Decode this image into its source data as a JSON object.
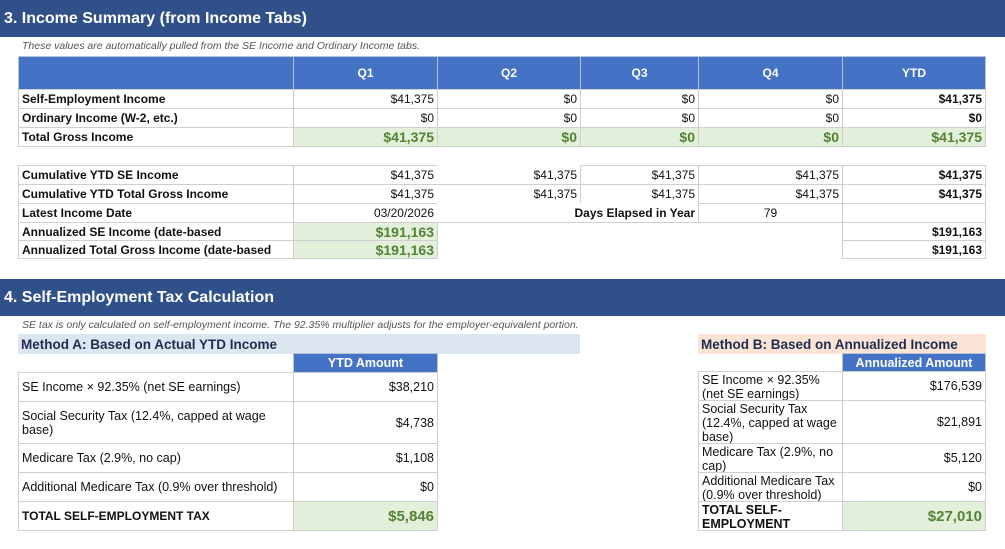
{
  "section3": {
    "title": "3. Income Summary (from Income Tabs)",
    "note": "These values are automatically pulled from the SE Income and Ordinary Income tabs.",
    "headers": [
      "",
      "Q1",
      "Q2",
      "Q3",
      "Q4",
      "YTD"
    ],
    "rows": [
      {
        "label": "Self-Employment Income",
        "values": [
          "$41,375",
          "$0",
          "$0",
          "$0",
          "$41,375"
        ]
      },
      {
        "label": "Ordinary Income (W-2, etc.)",
        "values": [
          "$0",
          "$0",
          "$0",
          "$0",
          "$0"
        ]
      },
      {
        "label": "Total Gross Income",
        "values": [
          "$41,375",
          "$0",
          "$0",
          "$0",
          "$41,375"
        ]
      }
    ],
    "cumulative": [
      {
        "label": "Cumulative YTD SE Income",
        "values": [
          "$41,375",
          "$41,375",
          "$41,375",
          "$41,375",
          "$41,375"
        ]
      },
      {
        "label": "Cumulative YTD Total Gross Income",
        "values": [
          "$41,375",
          "$41,375",
          "$41,375",
          "$41,375",
          "$41,375"
        ]
      }
    ],
    "latest_date": {
      "label": "Latest Income Date",
      "value": "03/20/2026"
    },
    "days_elapsed": {
      "label": "Days Elapsed in Year",
      "value": "79"
    },
    "annualized": [
      {
        "label": "Annualized SE Income (date-based",
        "value": "$191,163",
        "ytd": "$191,163"
      },
      {
        "label": "Annualized Total Gross Income (date-based",
        "value": "$191,163",
        "ytd": "$191,163"
      }
    ]
  },
  "section4": {
    "title": "4. Self-Employment Tax Calculation",
    "note": "SE tax is only calculated on self-employment income. The 92.35% multiplier adjusts for the employer-equivalent portion.",
    "method_a": {
      "title": "Method A: Based on Actual YTD Income",
      "column": "YTD Amount",
      "rows": [
        {
          "label": "SE Income × 92.35% (net SE earnings)",
          "value": "$38,210"
        },
        {
          "label": "Social Security Tax (12.4%, capped at wage base)",
          "value": "$4,738"
        },
        {
          "label": "Medicare Tax (2.9%, no cap)",
          "value": "$1,108"
        },
        {
          "label": "Additional Medicare Tax (0.9% over threshold)",
          "value": "$0"
        },
        {
          "label": "TOTAL SELF-EMPLOYMENT TAX",
          "value": "$5,846"
        }
      ]
    },
    "method_b": {
      "title": "Method B: Based on Annualized Income",
      "column": "Annualized Amount",
      "rows": [
        {
          "label": "SE Income × 92.35% (net SE earnings)",
          "value": "$176,539"
        },
        {
          "label": "Social Security Tax (12.4%, capped at wage base)",
          "value": "$21,891"
        },
        {
          "label": "Medicare Tax (2.9%, no cap)",
          "value": "$5,120"
        },
        {
          "label": "Additional Medicare Tax (0.9% over threshold)",
          "value": "$0"
        },
        {
          "label": "TOTAL SELF-EMPLOYMENT",
          "value": "$27,010"
        }
      ]
    }
  },
  "colors": {
    "section_band": "#30508a",
    "header_blue": "#4472c4",
    "total_green_bg": "#e2efda",
    "total_green_text": "#548235",
    "method_a_bg": "#dce6f1",
    "method_b_bg": "#fbe4d5"
  }
}
